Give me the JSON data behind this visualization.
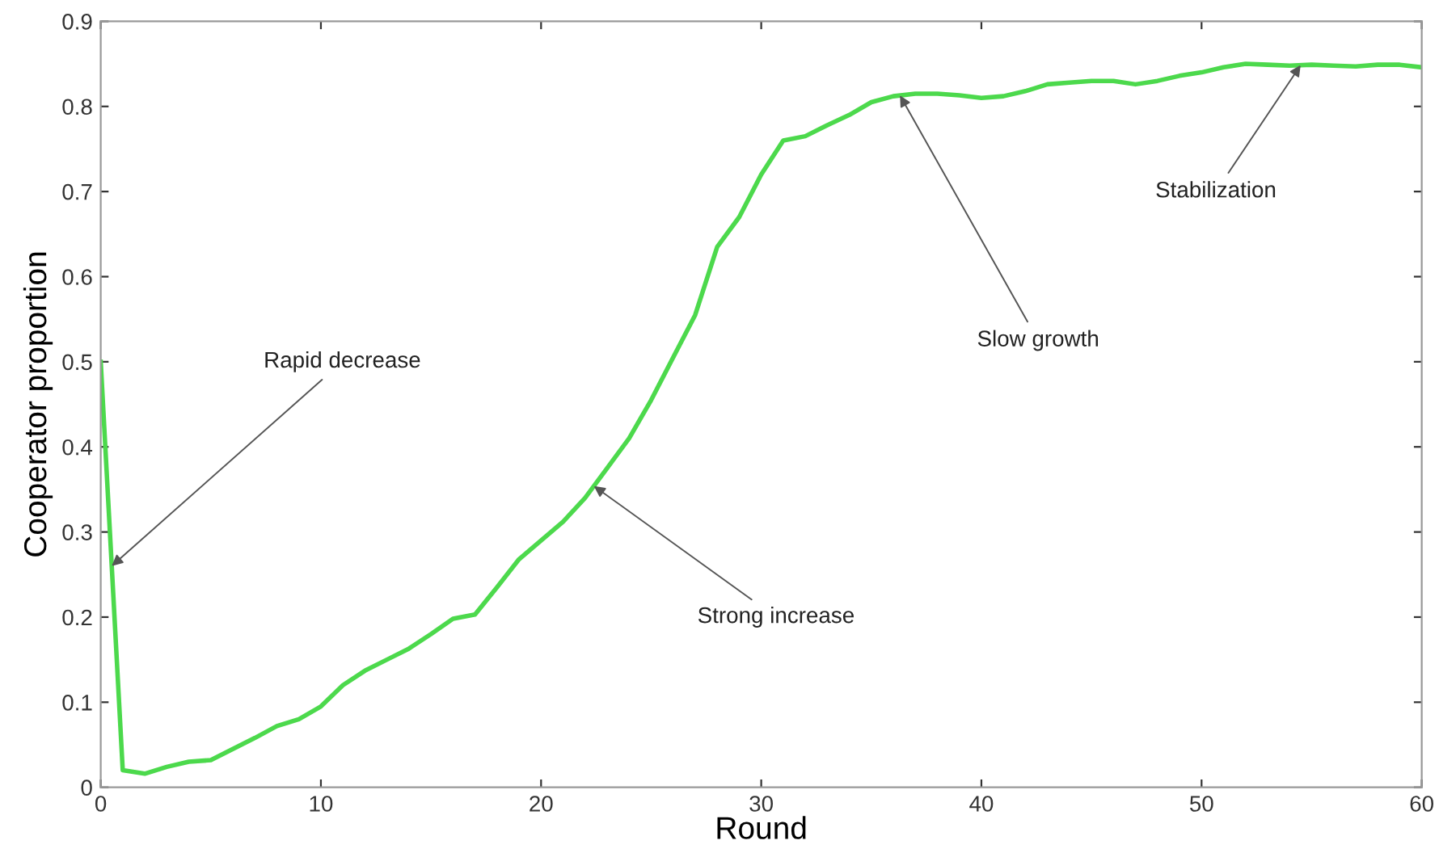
{
  "chart_data": {
    "type": "line",
    "xlabel": "Round",
    "ylabel": "Cooperator proportion",
    "x": [
      0,
      1,
      2,
      3,
      4,
      5,
      6,
      7,
      8,
      9,
      10,
      11,
      12,
      13,
      14,
      15,
      16,
      17,
      18,
      19,
      20,
      21,
      22,
      23,
      24,
      25,
      26,
      27,
      28,
      29,
      30,
      31,
      32,
      33,
      34,
      35,
      36,
      37,
      38,
      39,
      40,
      41,
      42,
      43,
      44,
      45,
      46,
      47,
      48,
      49,
      50,
      51,
      52,
      53,
      54,
      55,
      56,
      57,
      58,
      59,
      60
    ],
    "series": [
      {
        "color": "#4cd94c",
        "values": [
          0.5,
          0.02,
          0.016,
          0.024,
          0.03,
          0.032,
          0.045,
          0.058,
          0.072,
          0.08,
          0.095,
          0.12,
          0.137,
          0.15,
          0.163,
          0.18,
          0.198,
          0.203,
          0.235,
          0.268,
          0.29,
          0.312,
          0.34,
          0.375,
          0.41,
          0.455,
          0.505,
          0.555,
          0.635,
          0.67,
          0.72,
          0.76,
          0.765,
          0.778,
          0.79,
          0.805,
          0.812,
          0.815,
          0.815,
          0.813,
          0.81,
          0.812,
          0.818,
          0.826,
          0.828,
          0.83,
          0.83,
          0.826,
          0.83,
          0.836,
          0.84,
          0.846,
          0.85,
          0.849,
          0.848,
          0.849,
          0.848,
          0.847,
          0.849,
          0.849,
          0.846
        ]
      }
    ],
    "annotations": [
      {
        "text": "Rapid decrease",
        "x": 0.5,
        "y": 0.26
      },
      {
        "text": "Strong increase",
        "x": 22.4,
        "y": 0.354
      },
      {
        "text": "Slow growth",
        "x": 36.3,
        "y": 0.813
      },
      {
        "text": "Stabilization",
        "x": 54.5,
        "y": 0.8485
      }
    ],
    "xlim": [
      0,
      60
    ],
    "ylim": [
      0,
      0.9
    ],
    "xticks": [
      0,
      10,
      20,
      30,
      40,
      50,
      60
    ],
    "yticks": [
      0,
      0.1,
      0.2,
      0.3,
      0.4,
      0.5,
      0.6,
      0.7,
      0.8,
      0.9
    ],
    "grid": false,
    "legend": false,
    "marker": "none",
    "line_style": "solid"
  }
}
